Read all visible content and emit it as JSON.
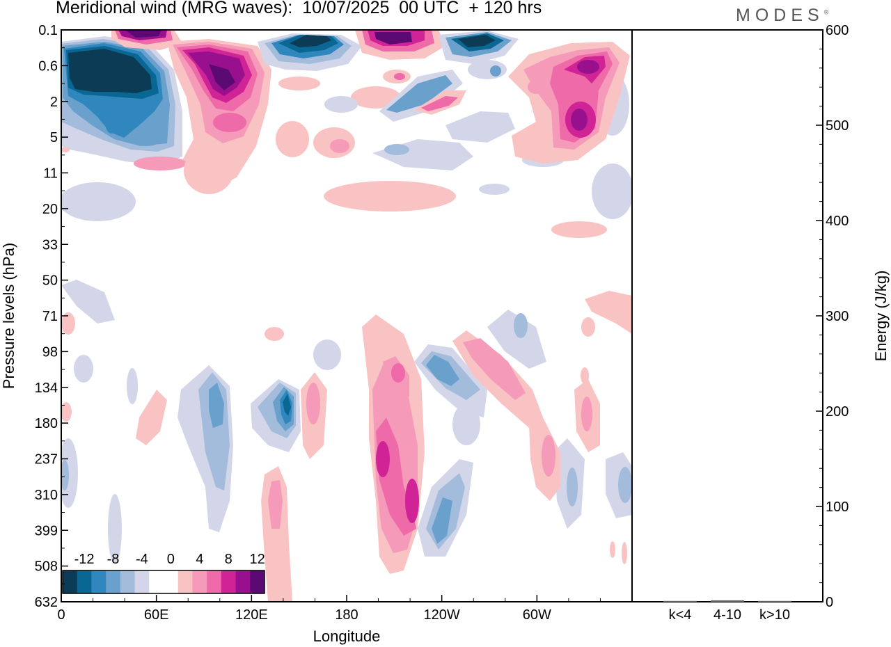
{
  "header": {
    "title": "Meridional wind (MRG waves):  10/07/2025  00 UTC  + 120 hrs",
    "logo_text": "MODES",
    "logo_mark": "®"
  },
  "chart_data": [
    {
      "type": "heatmap",
      "title": "Meridional wind (MRG waves):  10/07/2025  00 UTC  + 120 hrs",
      "xlabel": "Longitude",
      "ylabel": "Pressure levels (hPa)",
      "x_ticks": [
        "0",
        "60E",
        "120E",
        "180",
        "120W",
        "60W"
      ],
      "x_tick_degrees": [
        0,
        60,
        120,
        180,
        240,
        300
      ],
      "xlim_degrees": [
        0,
        360
      ],
      "y_ticks": [
        "0.1",
        "0.6",
        "2",
        "5",
        "11",
        "20",
        "33",
        "50",
        "71",
        "98",
        "134",
        "180",
        "237",
        "310",
        "399",
        "508",
        "632"
      ],
      "y_scale": "pressure levels (top 0.1 hPa to bottom 632 hPa)",
      "grid": false,
      "colorbar": {
        "placement": "bottom-left",
        "labels": [
          "-12",
          "-8",
          "-4",
          "0",
          "4",
          "8",
          "12"
        ],
        "colors": [
          "#0c3b55",
          "#0a6793",
          "#2f87be",
          "#6aa0cc",
          "#a3bcdc",
          "#d3d6e8",
          "#ffffff",
          "#ffffff",
          "#f9c3c4",
          "#f59ab8",
          "#ee6aa8",
          "#cf2396",
          "#98108d",
          "#5a0a72"
        ]
      },
      "features": [
        {
          "lon": 18,
          "level": "0.6",
          "value": -14
        },
        {
          "lon": 30,
          "level": "5",
          "value": -8
        },
        {
          "lon": 52,
          "level": "0.1",
          "value": 12
        },
        {
          "lon": 100,
          "level": "0.6",
          "value": 12
        },
        {
          "lon": 100,
          "level": "5",
          "value": 6
        },
        {
          "lon": 160,
          "level": "0.1",
          "value": -10
        },
        {
          "lon": 208,
          "level": "0.1",
          "value": 12
        },
        {
          "lon": 255,
          "level": "0.1",
          "value": -10
        },
        {
          "lon": 335,
          "level": "0.6",
          "value": 10
        },
        {
          "lon": 328,
          "level": "5",
          "value": 10
        },
        {
          "lon": 96,
          "level": "134",
          "value": -6
        },
        {
          "lon": 140,
          "level": "134",
          "value": -10
        },
        {
          "lon": 205,
          "level": "237",
          "value": 8
        },
        {
          "lon": 202,
          "level": "98",
          "value": 7
        },
        {
          "lon": 225,
          "level": "310",
          "value": 7
        },
        {
          "lon": 238,
          "level": "98",
          "value": -6
        },
        {
          "lon": 140,
          "level": "310",
          "value": 5
        },
        {
          "lon": 236,
          "level": "399",
          "value": -5
        }
      ]
    },
    {
      "type": "bar",
      "title": "",
      "ylabel": "Energy (J/kg)",
      "categories": [
        "k<4",
        "4-10",
        "k>10"
      ],
      "values": [
        0.5,
        1.5,
        0.2
      ],
      "ylim": [
        0,
        600
      ],
      "y_ticks": [
        "0",
        "100",
        "200",
        "300",
        "400",
        "500",
        "600"
      ]
    }
  ]
}
